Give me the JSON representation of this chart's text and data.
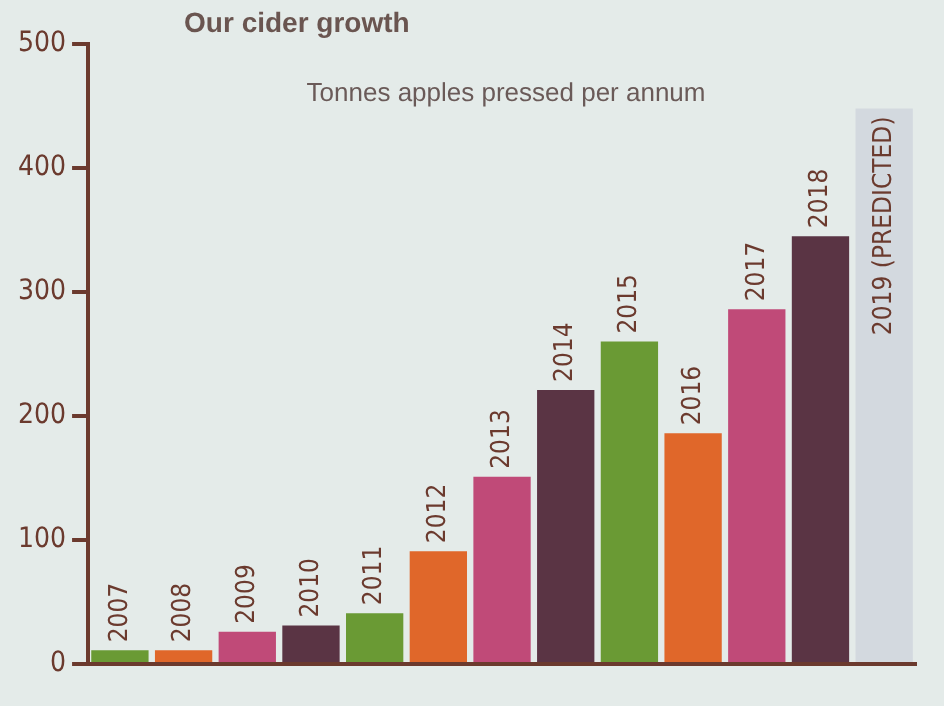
{
  "chart_data": {
    "type": "bar",
    "title": "Our cider growth",
    "subtitle": "Tonnes apples pressed per annum",
    "categories": [
      "2007",
      "2008",
      "2009",
      "2010",
      "2011",
      "2012",
      "2013",
      "2014",
      "2015",
      "2016",
      "2017",
      "2018",
      "2019 (PREDICTED)"
    ],
    "values": [
      11,
      11,
      26,
      31,
      41,
      91,
      151,
      221,
      260,
      186,
      286,
      345,
      448
    ],
    "colors": [
      "#6a9a34",
      "#e0672a",
      "#c04a78",
      "#5a3444",
      "#6a9a34",
      "#e0672a",
      "#c04a78",
      "#5a3444",
      "#6a9a34",
      "#e0672a",
      "#c04a78",
      "#5a3444",
      "#d3d9df"
    ],
    "ylim": [
      0,
      500
    ],
    "yticks": [
      0,
      100,
      200,
      300,
      400,
      500
    ],
    "grid": false,
    "legend": false
  }
}
